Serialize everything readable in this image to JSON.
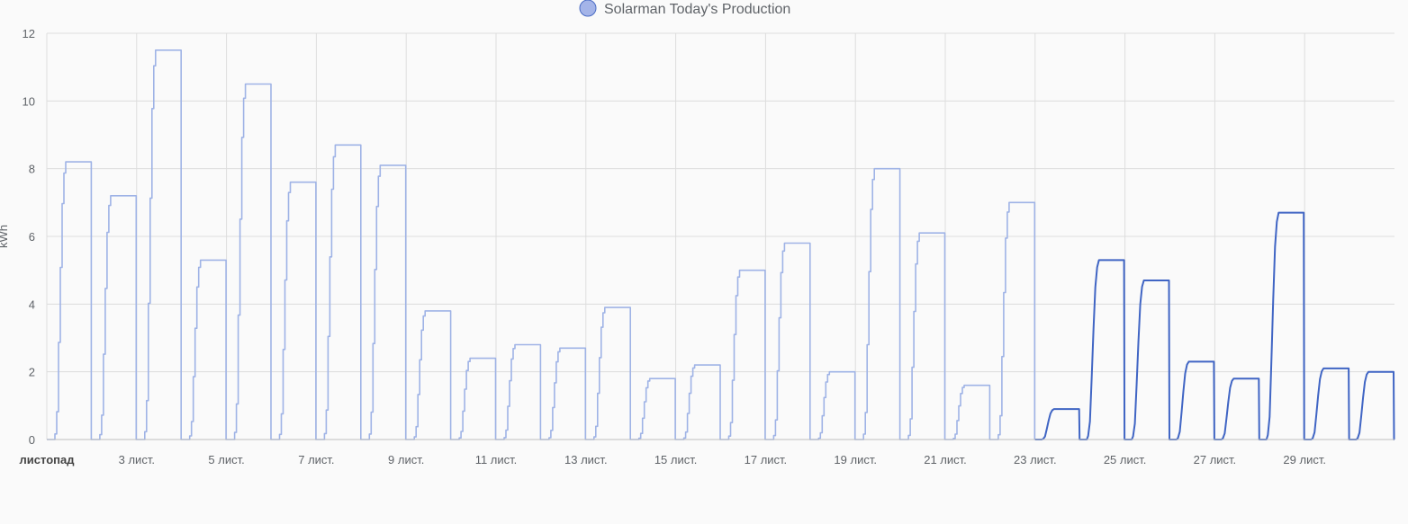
{
  "legend": {
    "label": "Solarman Today's Production",
    "color": "#a4b4e8",
    "border": "#4a6cc4"
  },
  "chart_data": {
    "type": "line",
    "ylabel": "kWh",
    "ylim": [
      0,
      12
    ],
    "yticks": [
      0,
      2,
      4,
      6,
      8,
      10,
      12
    ],
    "xlim": [
      1,
      31
    ],
    "xticks": [
      {
        "day": 1,
        "label": "листопад",
        "bold": true
      },
      {
        "day": 3,
        "label": "3 лист."
      },
      {
        "day": 5,
        "label": "5 лист."
      },
      {
        "day": 7,
        "label": "7 лист."
      },
      {
        "day": 9,
        "label": "9 лист."
      },
      {
        "day": 11,
        "label": "11 лист."
      },
      {
        "day": 13,
        "label": "13 лист."
      },
      {
        "day": 15,
        "label": "15 лист."
      },
      {
        "day": 17,
        "label": "17 лист."
      },
      {
        "day": 19,
        "label": "19 лист."
      },
      {
        "day": 21,
        "label": "21 лист."
      },
      {
        "day": 23,
        "label": "23 лист."
      },
      {
        "day": 25,
        "label": "25 лист."
      },
      {
        "day": 27,
        "label": "27 лист."
      },
      {
        "day": 29,
        "label": "29 лист."
      }
    ],
    "grid": true,
    "legend_position": "top-center",
    "colors": {
      "history": "#9fb3e6",
      "recent": "#4065c4",
      "grid": "#dddddd",
      "axis": "#bdbdbd"
    },
    "series": [
      {
        "name": "Solarman Today's Production",
        "daily_totals": [
          {
            "day": 1,
            "kwh": 8.2
          },
          {
            "day": 2,
            "kwh": 7.2
          },
          {
            "day": 3,
            "kwh": 11.5
          },
          {
            "day": 4,
            "kwh": 5.3
          },
          {
            "day": 5,
            "kwh": 10.5
          },
          {
            "day": 6,
            "kwh": 7.6
          },
          {
            "day": 7,
            "kwh": 8.7
          },
          {
            "day": 8,
            "kwh": 8.1
          },
          {
            "day": 9,
            "kwh": 3.8
          },
          {
            "day": 10,
            "kwh": 2.4
          },
          {
            "day": 11,
            "kwh": 2.8
          },
          {
            "day": 12,
            "kwh": 2.7
          },
          {
            "day": 13,
            "kwh": 3.9
          },
          {
            "day": 14,
            "kwh": 1.8
          },
          {
            "day": 15,
            "kwh": 2.2
          },
          {
            "day": 16,
            "kwh": 5.0
          },
          {
            "day": 17,
            "kwh": 5.8
          },
          {
            "day": 18,
            "kwh": 2.0
          },
          {
            "day": 19,
            "kwh": 8.0
          },
          {
            "day": 20,
            "kwh": 6.1
          },
          {
            "day": 21,
            "kwh": 1.6
          },
          {
            "day": 22,
            "kwh": 7.0
          },
          {
            "day": 23,
            "kwh": 0.9
          },
          {
            "day": 24,
            "kwh": 5.3
          },
          {
            "day": 25,
            "kwh": 4.7
          },
          {
            "day": 26,
            "kwh": 2.3
          },
          {
            "day": 27,
            "kwh": 1.8
          },
          {
            "day": 28,
            "kwh": 6.7
          },
          {
            "day": 29,
            "kwh": 2.1
          },
          {
            "day": 30,
            "kwh": 2.0
          }
        ]
      }
    ]
  }
}
